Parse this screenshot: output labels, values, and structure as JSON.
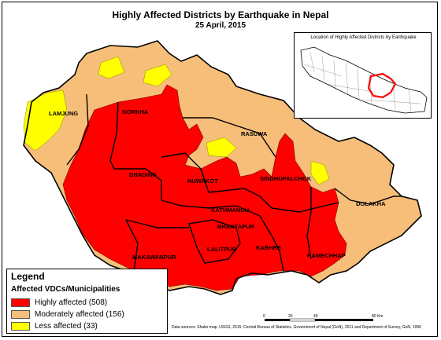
{
  "title": "Highly Affected Districts by Earthquake in Nepal",
  "subtitle": "25 April, 2015",
  "colors": {
    "high": "#ff0000",
    "moderate": "#f7be7a",
    "less": "#ffff00",
    "border": "#000000"
  },
  "districts": [
    {
      "name": "LAMJUNG",
      "category": "moderate"
    },
    {
      "name": "GORKHA",
      "category": "high"
    },
    {
      "name": "RASUWA",
      "category": "moderate"
    },
    {
      "name": "DHADING",
      "category": "high"
    },
    {
      "name": "NUWAKOT",
      "category": "high"
    },
    {
      "name": "SINDHUPALCHOK",
      "category": "high"
    },
    {
      "name": "DOLAKHA",
      "category": "moderate"
    },
    {
      "name": "KATHMANDU",
      "category": "high"
    },
    {
      "name": "BHAKTAPUR",
      "category": "high"
    },
    {
      "name": "LALITPUR",
      "category": "high"
    },
    {
      "name": "KABHRE",
      "category": "high"
    },
    {
      "name": "RAMECHHAP",
      "category": "high"
    },
    {
      "name": "MAKAWANPUR",
      "category": "high"
    }
  ],
  "inset": {
    "title": "Location of Highly Affected Districts by Earthquake"
  },
  "legend": {
    "title": "Legend",
    "subtitle": "Affected VDCs/Municipalities",
    "items": [
      {
        "label": "Highly affected (508)",
        "color": "#ff0000",
        "count": 508
      },
      {
        "label": "Moderately affected (156)",
        "color": "#f7be7a",
        "count": 156
      },
      {
        "label": "Less affected (33)",
        "color": "#ffff00",
        "count": 33
      }
    ]
  },
  "scale": {
    "ticks": [
      "0",
      "20",
      "40",
      "80 Km"
    ]
  },
  "source": "Data sources: Shake map, USGS, 2015; Central Bureau of Statistics, Government of Nepal (GoN), 2011 and Department of Survey, GoN, 1996"
}
